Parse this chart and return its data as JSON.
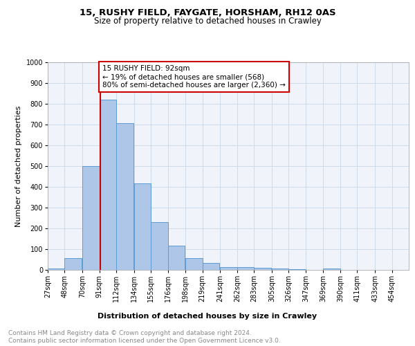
{
  "title1": "15, RUSHY FIELD, FAYGATE, HORSHAM, RH12 0AS",
  "title2": "Size of property relative to detached houses in Crawley",
  "xlabel": "Distribution of detached houses by size in Crawley",
  "ylabel": "Number of detached properties",
  "bar_left_edges": [
    27,
    48,
    70,
    91,
    112,
    134,
    155,
    176,
    198,
    219,
    241,
    262,
    283,
    305,
    326,
    347,
    369,
    390,
    411,
    433
  ],
  "bar_heights": [
    8,
    58,
    500,
    820,
    708,
    418,
    231,
    116,
    57,
    32,
    14,
    12,
    10,
    8,
    5,
    0,
    7,
    0,
    0,
    0
  ],
  "bin_width": 21,
  "bar_color": "#aec6e8",
  "bar_edge_color": "#5b9bd5",
  "tick_labels": [
    "27sqm",
    "48sqm",
    "70sqm",
    "91sqm",
    "112sqm",
    "134sqm",
    "155sqm",
    "176sqm",
    "198sqm",
    "219sqm",
    "241sqm",
    "262sqm",
    "283sqm",
    "305sqm",
    "326sqm",
    "347sqm",
    "369sqm",
    "390sqm",
    "411sqm",
    "433sqm",
    "454sqm"
  ],
  "property_size": 92,
  "vline_color": "#cc0000",
  "vline_x": 92,
  "annotation_text": "15 RUSHY FIELD: 92sqm\n← 19% of detached houses are smaller (568)\n80% of semi-detached houses are larger (2,360) →",
  "annotation_box_color": "#ffffff",
  "annotation_box_edge_color": "#cc0000",
  "ylim": [
    0,
    1000
  ],
  "yticks": [
    0,
    100,
    200,
    300,
    400,
    500,
    600,
    700,
    800,
    900,
    1000
  ],
  "grid_color": "#c8d8e8",
  "background_color": "#f0f4fa",
  "footer_text": "Contains HM Land Registry data © Crown copyright and database right 2024.\nContains public sector information licensed under the Open Government Licence v3.0.",
  "title1_fontsize": 9.5,
  "title2_fontsize": 8.5,
  "xlabel_fontsize": 8,
  "ylabel_fontsize": 8,
  "tick_fontsize": 7,
  "footer_fontsize": 6.5,
  "annotation_fontsize": 7.5
}
